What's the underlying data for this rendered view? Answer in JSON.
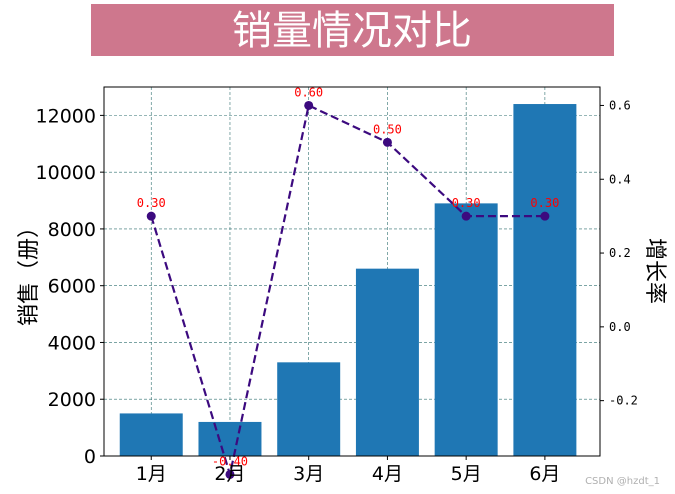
{
  "title": "销量情况对比",
  "chart_data": {
    "type": "bar",
    "title": "销量情况对比",
    "categories": [
      "1月",
      "2月",
      "3月",
      "4月",
      "5月",
      "6月"
    ],
    "xlabel": "",
    "ylabel": "销售（册）",
    "y2label": "增长率",
    "ylim": [
      0,
      13000
    ],
    "y2lim": [
      -0.35,
      0.65
    ],
    "yticks": [
      0,
      2000,
      4000,
      6000,
      8000,
      10000,
      12000
    ],
    "y2ticks": [
      -0.2,
      0.0,
      0.2,
      0.4,
      0.6
    ],
    "grid": true,
    "series": [
      {
        "type": "bar",
        "axis": "left",
        "values": [
          1500,
          1200,
          3300,
          6600,
          8900,
          12400
        ]
      },
      {
        "type": "line",
        "axis": "right",
        "style": "dashed",
        "marker": "circle",
        "values": [
          0.3,
          -0.4,
          0.6,
          0.5,
          0.3,
          0.3
        ],
        "labels": [
          "0.30",
          "-0.40",
          "0.60",
          "0.50",
          "0.30",
          "0.30"
        ]
      }
    ]
  },
  "colors": {
    "title_bg": "#ce778d",
    "title_text": "#ffffff",
    "bar": "#1f77b4",
    "line": "#3c0a7f",
    "label": "#ff0000",
    "grid": "#2f6f6f"
  },
  "watermark": "CSDN @hzdt_1"
}
